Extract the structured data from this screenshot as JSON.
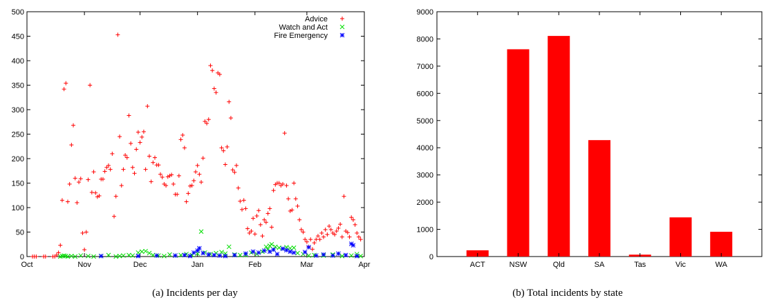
{
  "captions": {
    "left": "(a)  Incidents per day",
    "right": "(b)  Total incidents by state"
  },
  "chart_data": [
    {
      "type": "scatter",
      "title": "",
      "xlabel": "",
      "ylabel": "",
      "x_unit": "day index (0 = 1 Oct)",
      "xlim": [
        0,
        182
      ],
      "ylim": [
        0,
        500
      ],
      "x_ticks": [
        {
          "label": "Oct",
          "value": 0
        },
        {
          "label": "Nov",
          "value": 31
        },
        {
          "label": "Dec",
          "value": 61
        },
        {
          "label": "Jan",
          "value": 92
        },
        {
          "label": "Feb",
          "value": 123
        },
        {
          "label": "Mar",
          "value": 151
        },
        {
          "label": "Apr",
          "value": 182
        }
      ],
      "y_ticks": [
        0,
        50,
        100,
        150,
        200,
        250,
        300,
        350,
        400,
        450,
        500
      ],
      "legend_position": "top-right",
      "series": [
        {
          "name": "Advice",
          "marker": "+",
          "color": "#ff0000",
          "points": [
            [
              3,
              0
            ],
            [
              4,
              0
            ],
            [
              5,
              0
            ],
            [
              9,
              0
            ],
            [
              10,
              0
            ],
            [
              14,
              0
            ],
            [
              15,
              0
            ],
            [
              16,
              3
            ],
            [
              17,
              8
            ],
            [
              18,
              23
            ],
            [
              19,
              115
            ],
            [
              20,
              342
            ],
            [
              21,
              354
            ],
            [
              22,
              112
            ],
            [
              23,
              148
            ],
            [
              24,
              228
            ],
            [
              25,
              268
            ],
            [
              26,
              160
            ],
            [
              27,
              110
            ],
            [
              28,
              152
            ],
            [
              29,
              159
            ],
            [
              30,
              48
            ],
            [
              31,
              14
            ],
            [
              32,
              50
            ],
            [
              33,
              157
            ],
            [
              34,
              350
            ],
            [
              35,
              131
            ],
            [
              36,
              173
            ],
            [
              37,
              130
            ],
            [
              38,
              122
            ],
            [
              39,
              124
            ],
            [
              40,
              158
            ],
            [
              41,
              158
            ],
            [
              42,
              174
            ],
            [
              43,
              182
            ],
            [
              44,
              186
            ],
            [
              45,
              178
            ],
            [
              46,
              210
            ],
            [
              47,
              82
            ],
            [
              48,
              123
            ],
            [
              49,
              453
            ],
            [
              50,
              245
            ],
            [
              51,
              145
            ],
            [
              52,
              178
            ],
            [
              53,
              207
            ],
            [
              54,
              202
            ],
            [
              55,
              288
            ],
            [
              56,
              231
            ],
            [
              57,
              182
            ],
            [
              58,
              170
            ],
            [
              59,
              219
            ],
            [
              60,
              254
            ],
            [
              61,
              233
            ],
            [
              62,
              244
            ],
            [
              63,
              255
            ],
            [
              64,
              178
            ],
            [
              65,
              307
            ],
            [
              66,
              205
            ],
            [
              67,
              153
            ],
            [
              68,
              192
            ],
            [
              69,
              202
            ],
            [
              70,
              187
            ],
            [
              71,
              187
            ],
            [
              72,
              168
            ],
            [
              73,
              162
            ],
            [
              74,
              148
            ],
            [
              75,
              145
            ],
            [
              76,
              163
            ],
            [
              77,
              165
            ],
            [
              78,
              167
            ],
            [
              79,
              148
            ],
            [
              80,
              127
            ],
            [
              81,
              127
            ],
            [
              82,
              165
            ],
            [
              83,
              239
            ],
            [
              84,
              248
            ],
            [
              85,
              222
            ],
            [
              86,
              112
            ],
            [
              87,
              129
            ],
            [
              88,
              144
            ],
            [
              89,
              145
            ],
            [
              90,
              155
            ],
            [
              91,
              173
            ],
            [
              92,
              186
            ],
            [
              93,
              168
            ],
            [
              94,
              152
            ],
            [
              95,
              201
            ],
            [
              96,
              276
            ],
            [
              97,
              272
            ],
            [
              98,
              280
            ],
            [
              99,
              390
            ],
            [
              100,
              380
            ],
            [
              101,
              343
            ],
            [
              102,
              335
            ],
            [
              103,
              375
            ],
            [
              104,
              372
            ],
            [
              105,
              222
            ],
            [
              106,
              216
            ],
            [
              107,
              188
            ],
            [
              108,
              224
            ],
            [
              109,
              316
            ],
            [
              110,
              283
            ],
            [
              111,
              177
            ],
            [
              112,
              172
            ],
            [
              113,
              186
            ],
            [
              114,
              140
            ],
            [
              115,
              113
            ],
            [
              116,
              96
            ],
            [
              117,
              115
            ],
            [
              118,
              98
            ],
            [
              119,
              57
            ],
            [
              120,
              48
            ],
            [
              121,
              52
            ],
            [
              122,
              78
            ],
            [
              123,
              46
            ],
            [
              124,
              83
            ],
            [
              125,
              94
            ],
            [
              126,
              65
            ],
            [
              127,
              42
            ],
            [
              128,
              75
            ],
            [
              129,
              70
            ],
            [
              130,
              88
            ],
            [
              131,
              98
            ],
            [
              132,
              60
            ],
            [
              133,
              135
            ],
            [
              134,
              147
            ],
            [
              135,
              150
            ],
            [
              136,
              150
            ],
            [
              137,
              145
            ],
            [
              138,
              148
            ],
            [
              139,
              252
            ],
            [
              140,
              145
            ],
            [
              141,
              118
            ],
            [
              142,
              93
            ],
            [
              143,
              95
            ],
            [
              144,
              150
            ],
            [
              145,
              118
            ],
            [
              146,
              103
            ],
            [
              147,
              75
            ],
            [
              148,
              55
            ],
            [
              149,
              50
            ],
            [
              150,
              35
            ],
            [
              151,
              30
            ],
            [
              152,
              20
            ],
            [
              153,
              35
            ],
            [
              154,
              15
            ],
            [
              155,
              28
            ],
            [
              156,
              35
            ],
            [
              157,
              42
            ],
            [
              158,
              35
            ],
            [
              159,
              48
            ],
            [
              160,
              40
            ],
            [
              161,
              55
            ],
            [
              162,
              45
            ],
            [
              163,
              62
            ],
            [
              164,
              55
            ],
            [
              165,
              48
            ],
            [
              166,
              45
            ],
            [
              167,
              52
            ],
            [
              168,
              58
            ],
            [
              169,
              66
            ],
            [
              170,
              40
            ],
            [
              171,
              123
            ],
            [
              172,
              52
            ],
            [
              173,
              49
            ],
            [
              174,
              40
            ],
            [
              175,
              80
            ],
            [
              176,
              75
            ],
            [
              177,
              65
            ],
            [
              178,
              48
            ],
            [
              179,
              40
            ],
            [
              180,
              35
            ]
          ]
        },
        {
          "name": "Watch and Act",
          "marker": "x",
          "color": "#00dd00",
          "points": [
            [
              18,
              0
            ],
            [
              19,
              1
            ],
            [
              20,
              2
            ],
            [
              21,
              1
            ],
            [
              22,
              0
            ],
            [
              24,
              1
            ],
            [
              26,
              0
            ],
            [
              29,
              2
            ],
            [
              33,
              1
            ],
            [
              36,
              0
            ],
            [
              40,
              1
            ],
            [
              44,
              3
            ],
            [
              48,
              0
            ],
            [
              50,
              1
            ],
            [
              52,
              2
            ],
            [
              55,
              3
            ],
            [
              57,
              2
            ],
            [
              60,
              8
            ],
            [
              62,
              10
            ],
            [
              64,
              11
            ],
            [
              66,
              7
            ],
            [
              68,
              3
            ],
            [
              71,
              2
            ],
            [
              74,
              1
            ],
            [
              77,
              4
            ],
            [
              80,
              2
            ],
            [
              83,
              3
            ],
            [
              86,
              5
            ],
            [
              89,
              3
            ],
            [
              92,
              6
            ],
            [
              94,
              51
            ],
            [
              96,
              8
            ],
            [
              99,
              5
            ],
            [
              102,
              7
            ],
            [
              105,
              9
            ],
            [
              107,
              6
            ],
            [
              109,
              20
            ],
            [
              112,
              4
            ],
            [
              115,
              3
            ],
            [
              118,
              3
            ],
            [
              121,
              8
            ],
            [
              124,
              5
            ],
            [
              127,
              10
            ],
            [
              129,
              20
            ],
            [
              130,
              15
            ],
            [
              131,
              22
            ],
            [
              132,
              25
            ],
            [
              133,
              14
            ],
            [
              134,
              20
            ],
            [
              136,
              18
            ],
            [
              138,
              16
            ],
            [
              140,
              19
            ],
            [
              142,
              17
            ],
            [
              144,
              18
            ],
            [
              146,
              7
            ],
            [
              149,
              5
            ],
            [
              152,
              2
            ],
            [
              155,
              3
            ],
            [
              160,
              2
            ],
            [
              165,
              4
            ],
            [
              170,
              1
            ],
            [
              175,
              2
            ],
            [
              178,
              5
            ],
            [
              180,
              1
            ]
          ]
        },
        {
          "name": "Fire Emergency",
          "marker": "*",
          "color": "#0000ff",
          "points": [
            [
              40,
              1
            ],
            [
              60,
              1
            ],
            [
              70,
              2
            ],
            [
              80,
              2
            ],
            [
              85,
              3
            ],
            [
              88,
              1
            ],
            [
              90,
              8
            ],
            [
              92,
              12
            ],
            [
              93,
              17
            ],
            [
              95,
              7
            ],
            [
              98,
              4
            ],
            [
              101,
              3
            ],
            [
              104,
              2
            ],
            [
              107,
              1
            ],
            [
              112,
              3
            ],
            [
              118,
              6
            ],
            [
              122,
              10
            ],
            [
              125,
              8
            ],
            [
              128,
              12
            ],
            [
              131,
              10
            ],
            [
              133,
              14
            ],
            [
              135,
              5
            ],
            [
              138,
              16
            ],
            [
              140,
              13
            ],
            [
              142,
              10
            ],
            [
              144,
              8
            ],
            [
              150,
              9
            ],
            [
              152,
              19
            ],
            [
              156,
              2
            ],
            [
              160,
              4
            ],
            [
              165,
              2
            ],
            [
              168,
              6
            ],
            [
              172,
              3
            ],
            [
              175,
              26
            ],
            [
              176,
              23
            ],
            [
              178,
              1
            ]
          ]
        }
      ]
    },
    {
      "type": "bar",
      "title": "",
      "xlabel": "",
      "ylabel": "",
      "ylim": [
        0,
        9000
      ],
      "y_ticks": [
        0,
        1000,
        2000,
        3000,
        4000,
        5000,
        6000,
        7000,
        8000,
        9000
      ],
      "color": "#ff0000",
      "categories": [
        "ACT",
        "NSW",
        "Qld",
        "SA",
        "Tas",
        "Vic",
        "WA"
      ],
      "values": [
        230,
        7620,
        8110,
        4280,
        70,
        1440,
        910
      ]
    }
  ]
}
